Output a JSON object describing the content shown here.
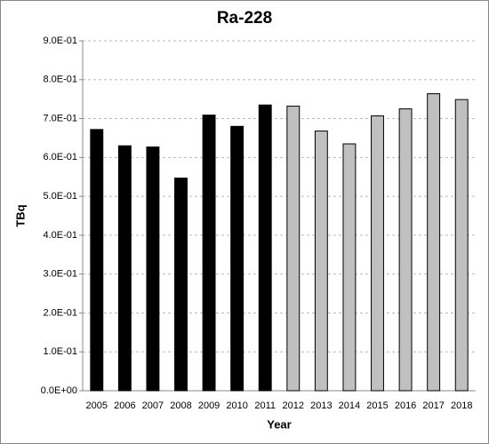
{
  "chart_data": {
    "type": "bar",
    "title": "Ra-228",
    "x_label": "Year",
    "y_label": "TBq",
    "categories": [
      "2005",
      "2006",
      "2007",
      "2008",
      "2009",
      "2010",
      "2011",
      "2012",
      "2013",
      "2014",
      "2015",
      "2016",
      "2017",
      "2018"
    ],
    "values": [
      0.672,
      0.63,
      0.627,
      0.547,
      0.709,
      0.68,
      0.735,
      0.732,
      0.668,
      0.635,
      0.707,
      0.725,
      0.764,
      0.749
    ],
    "colors": [
      "#000000",
      "#000000",
      "#000000",
      "#000000",
      "#000000",
      "#000000",
      "#000000",
      "#c0c0c0",
      "#c0c0c0",
      "#c0c0c0",
      "#c0c0c0",
      "#c0c0c0",
      "#c0c0c0",
      "#c0c0c0"
    ],
    "ylim": [
      0,
      0.9
    ],
    "yticks": [
      {
        "value": 0,
        "label": "0.0E+00"
      },
      {
        "value": 0.1,
        "label": "1.0E-01"
      },
      {
        "value": 0.2,
        "label": "2.0E-01"
      },
      {
        "value": 0.3,
        "label": "3.0E-01"
      },
      {
        "value": 0.4,
        "label": "4.0E-01"
      },
      {
        "value": 0.5,
        "label": "5.0E-01"
      },
      {
        "value": 0.6,
        "label": "6.0E-01"
      },
      {
        "value": 0.7,
        "label": "7.0E-01"
      },
      {
        "value": 0.8,
        "label": "8.0E-01"
      },
      {
        "value": 0.9,
        "label": "9.0E-01"
      }
    ],
    "grid": true
  }
}
